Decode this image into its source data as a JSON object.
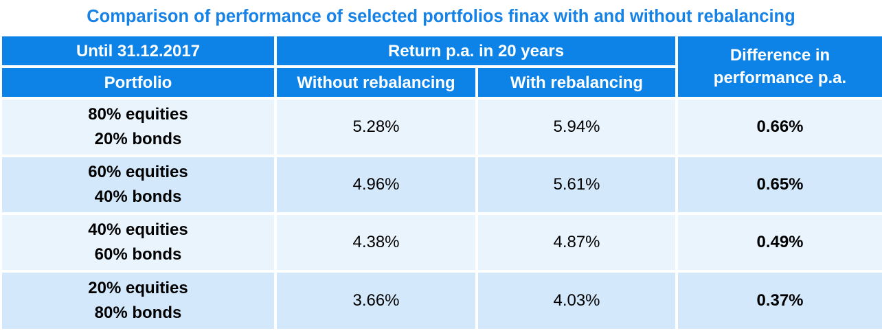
{
  "title": "Comparison of performance of selected portfolios finax with and without rebalancing",
  "colors": {
    "header": "#0d83e8",
    "title": "#1682e6",
    "row_light": "#eaf4fd",
    "row_dark": "#d3e9fb"
  },
  "header": {
    "date": "Until 31.12.2017",
    "portfolio": "Portfolio",
    "return_group": "Return p.a. in 20 years",
    "without": "Without rebalancing",
    "with": "With rebalancing",
    "difference_line1": "Difference in",
    "difference_line2": "performance p.a."
  },
  "rows": [
    {
      "line1": "80% equities",
      "line2": "20% bonds",
      "without": "5.28%",
      "with": "5.94%",
      "difference": "0.66%"
    },
    {
      "line1": "60% equities",
      "line2": "40% bonds",
      "without": "4.96%",
      "with": "5.61%",
      "difference": "0.65%"
    },
    {
      "line1": "40% equities",
      "line2": "60% bonds",
      "without": "4.38%",
      "with": "4.87%",
      "difference": "0.49%"
    },
    {
      "line1": "20% equities",
      "line2": "80% bonds",
      "without": "3.66%",
      "with": "4.03%",
      "difference": "0.37%"
    }
  ],
  "chart_data": {
    "type": "table",
    "title": "Comparison of performance of selected portfolios finax with and without rebalancing",
    "columns": [
      "Portfolio",
      "Without rebalancing",
      "With rebalancing",
      "Difference in performance p.a."
    ],
    "rows": [
      [
        "80% equities 20% bonds",
        "5.28%",
        "5.94%",
        "0.66%"
      ],
      [
        "60% equities 40% bonds",
        "4.96%",
        "5.61%",
        "0.65%"
      ],
      [
        "40% equities 60% bonds",
        "4.38%",
        "4.87%",
        "0.49%"
      ],
      [
        "20% equities 80% bonds",
        "3.66%",
        "4.03%",
        "0.37%"
      ]
    ]
  }
}
